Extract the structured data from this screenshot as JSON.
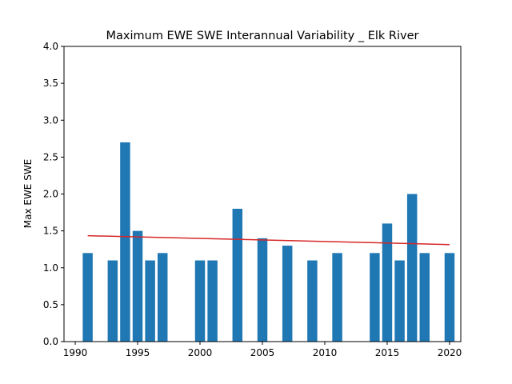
{
  "chart_data": {
    "type": "bar",
    "title": "Maximum EWE SWE Interannual Variability _ Elk River",
    "xlabel": "",
    "ylabel": "Max EWE SWE",
    "xlim": [
      1989.1,
      2020.9
    ],
    "ylim": [
      0,
      4.0
    ],
    "xticks": [
      1990,
      1995,
      2000,
      2005,
      2010,
      2015,
      2020
    ],
    "yticks": [
      "0.0",
      "0.5",
      "1.0",
      "1.5",
      "2.0",
      "2.5",
      "3.0",
      "3.5",
      "4.0"
    ],
    "grid": false,
    "bar_color": "#1f77b4",
    "trend_color": "#d62728",
    "x": [
      1991,
      1993,
      1994,
      1995,
      1996,
      1997,
      2000,
      2001,
      2003,
      2005,
      2007,
      2009,
      2011,
      2014,
      2015,
      2016,
      2017,
      2018,
      2020
    ],
    "values": [
      1.2,
      1.1,
      2.7,
      1.5,
      1.1,
      1.2,
      1.1,
      1.1,
      1.8,
      1.4,
      1.3,
      1.1,
      1.2,
      1.2,
      1.6,
      1.1,
      2.0,
      1.2,
      1.2
    ],
    "trend": {
      "x": [
        1991,
        2020
      ],
      "y": [
        1.435,
        1.315
      ]
    }
  }
}
